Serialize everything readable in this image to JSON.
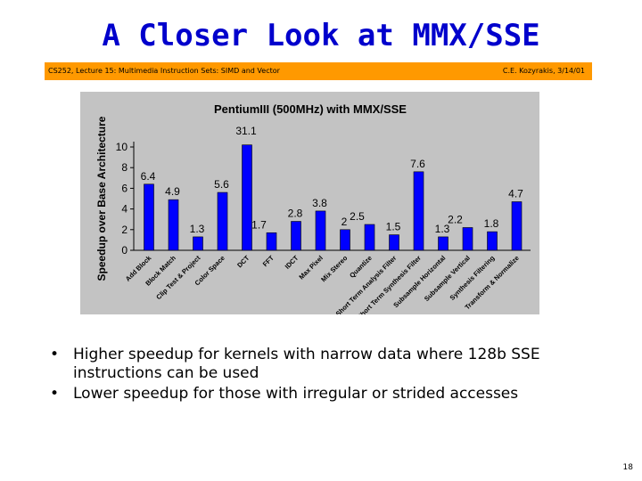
{
  "slide": {
    "title": "A Closer Look at MMX/SSE",
    "banner_left": "CS252, Lecture 15: Multimedia Instruction Sets: SIMD and Vector",
    "banner_right": "C.E. Kozyrakis, 3/14/01",
    "page_number": "18",
    "bullets": [
      "Higher speedup for kernels with narrow data where 128b SSE instructions can be used",
      "Lower speedup for those with irregular or strided accesses"
    ],
    "bullet_marker": "•"
  },
  "chart_data": {
    "type": "bar",
    "title": "PentiumIII (500MHz) with MMX/SSE",
    "xlabel": "",
    "ylabel": "Speedup over Base Architecture",
    "ylim": [
      0,
      10
    ],
    "yticks": [
      "0",
      "2",
      "4",
      "6",
      "8",
      "10"
    ],
    "grid": false,
    "bar_color": "#0000ff",
    "categories": [
      "Add Block",
      "Block Match",
      "Clip Test & Project",
      "Color Space",
      "DCT",
      "FFT",
      "IDCT",
      "Max Pixel",
      "Mix Stereo",
      "Quantize",
      "Short Term Analysis Filter",
      "Short Term Synthesis Filter",
      "Subsample Horizontal",
      "Subsample Vertical",
      "Synthesis Filtering",
      "Transform & Normalize"
    ],
    "values": [
      6.4,
      4.9,
      1.3,
      5.6,
      31.1,
      1.7,
      2.8,
      3.8,
      2,
      2.5,
      1.5,
      7.6,
      1.3,
      2.2,
      1.8,
      4.7
    ],
    "value_labels": [
      "6.4",
      "4.9",
      "1.3",
      "5.6",
      "31.1",
      "1.7",
      "2.8",
      "3.8",
      "2",
      "2.5",
      "1.5",
      "7.6",
      "1.3",
      "2.2",
      "1.8",
      "4.7"
    ]
  }
}
